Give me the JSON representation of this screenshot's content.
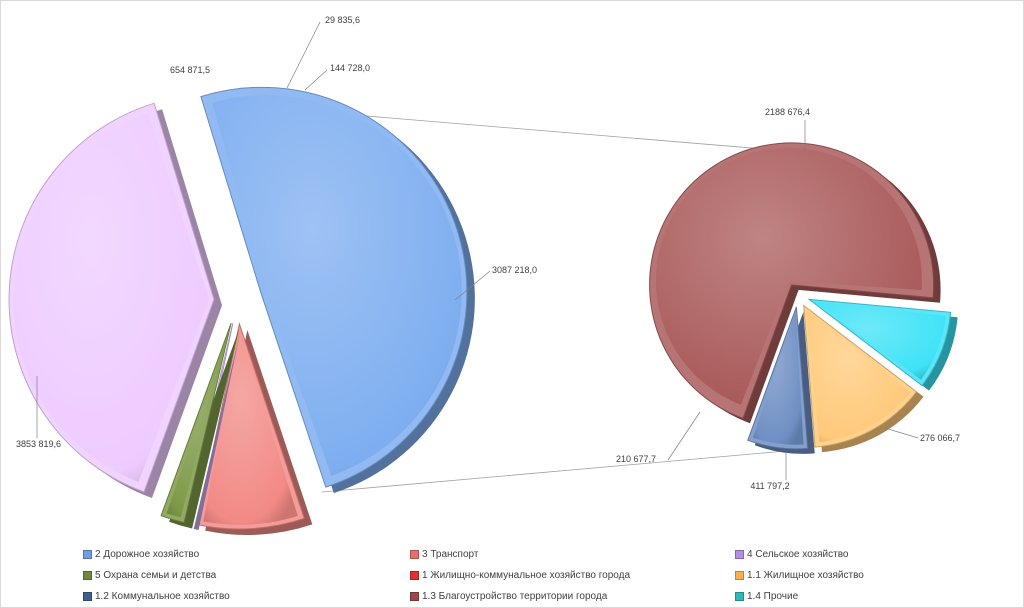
{
  "chart_data": {
    "type": "pie",
    "subtype": "bar-of-pie-exploded",
    "main_pie": {
      "slices": [
        {
          "name": "2 Дорожное хозяйство",
          "value": 3853819.6,
          "label": "3853 819,6",
          "color": "#7eaef0"
        },
        {
          "name": "3 Транспорт",
          "value": 654871.5,
          "label": "654 871,5",
          "color": "#f28a86"
        },
        {
          "name": "4 Сельское хозяйство",
          "value": 29835.6,
          "label": "29 835,6",
          "color": "#c9a8ec"
        },
        {
          "name": "5 Охрана семьи и детства",
          "value": 144728.0,
          "label": "144 728,0",
          "color": "#7e9a48"
        },
        {
          "name": "1 Жилищно-коммунальное  хозяйство города",
          "value": 3087218.0,
          "label": "3087 218,0",
          "color": "#eecbff"
        }
      ]
    },
    "secondary_pie": {
      "slices": [
        {
          "name": "1.3 Благоустройство территории города",
          "value": 2188676.4,
          "label": "2188 676,4",
          "color": "#aa5b5b"
        },
        {
          "name": "1.4 Прочие",
          "value": 276066.7,
          "label": "276 066,7",
          "color": "#3ee2f7"
        },
        {
          "name": "1.1 Жилищное хозяйство",
          "value": 411797.2,
          "label": "411 797,2",
          "color": "#ffc97a"
        },
        {
          "name": "1.2 Коммунальное хозяйство",
          "value": 210677.7,
          "label": "210 677,7",
          "color": "#6f8fc4"
        }
      ]
    },
    "legend": {
      "position": "bottom",
      "items": [
        {
          "label": "2 Дорожное хозяйство",
          "color": "#6f9fe0"
        },
        {
          "label": "3 Транспорт",
          "color": "#e8706c"
        },
        {
          "label": "4 Сельское хозяйство",
          "color": "#b48ce0"
        },
        {
          "label": "5 Охрана семьи и детства",
          "color": "#6e8b3d"
        },
        {
          "label": "1 Жилищно-коммунальное  хозяйство города",
          "color": "#e03030"
        },
        {
          "label": "1.1 Жилищное хозяйство",
          "color": "#f6b14d"
        },
        {
          "label": "1.2 Коммунальное хозяйство",
          "color": "#3e5f8f"
        },
        {
          "label": "1.3 Благоустройство территории города",
          "color": "#9a4a4a"
        },
        {
          "label": "1.4 Прочие",
          "color": "#2fb8b8"
        }
      ]
    }
  }
}
